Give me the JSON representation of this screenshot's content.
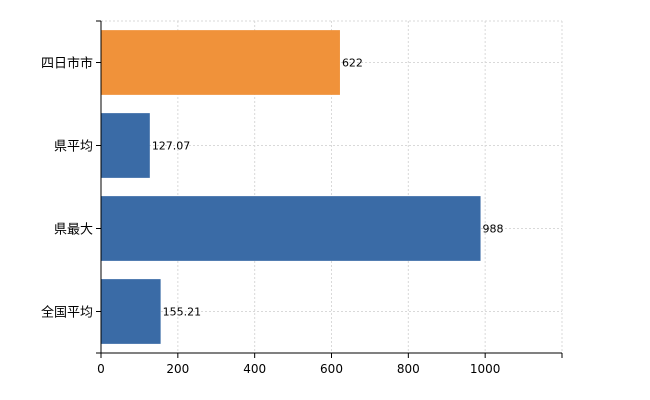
{
  "chart_data": {
    "type": "bar",
    "orientation": "horizontal",
    "title": "",
    "xlabel": "",
    "ylabel": "",
    "categories": [
      "四日市市",
      "県平均",
      "県最大",
      "全国平均"
    ],
    "values": [
      622,
      127.07,
      988,
      155.21
    ],
    "value_labels": [
      "622",
      "127.07",
      "988",
      "155.21"
    ],
    "bar_colors": [
      "#f0923a",
      "#3a6ba6",
      "#3a6ba6",
      "#3a6ba6"
    ],
    "xlim": [
      0,
      1200
    ],
    "x_ticks": [
      0,
      200,
      400,
      600,
      800,
      1000
    ],
    "x_tick_labels": [
      "0",
      "200",
      "400",
      "600",
      "800",
      "1000"
    ],
    "grid": true,
    "legend": "none"
  }
}
